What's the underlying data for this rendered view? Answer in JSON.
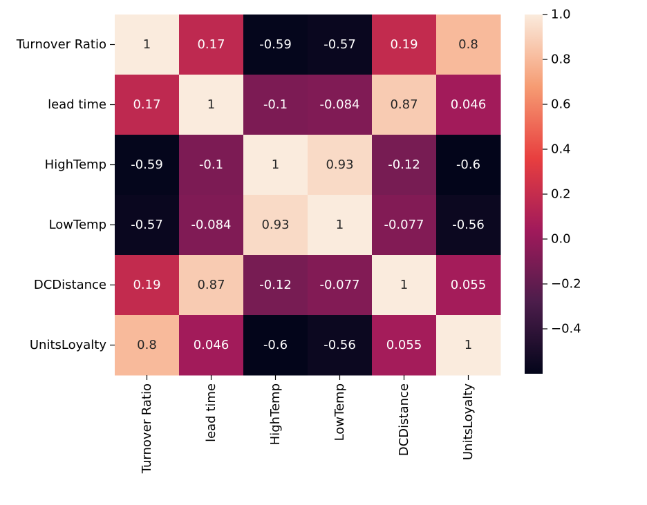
{
  "chart_data": {
    "type": "heatmap",
    "title": "",
    "xlabel": "",
    "ylabel": "",
    "row_labels": [
      "Turnover Ratio",
      "lead time",
      "HighTemp",
      "LowTemp",
      "DCDistance",
      "UnitsLoyalty"
    ],
    "col_labels": [
      "Turnover Ratio",
      "lead time",
      "HighTemp",
      "LowTemp",
      "DCDistance",
      "UnitsLoyalty"
    ],
    "values": [
      [
        1,
        0.17,
        -0.59,
        -0.57,
        0.19,
        0.8
      ],
      [
        0.17,
        1,
        -0.1,
        -0.084,
        0.87,
        0.046
      ],
      [
        -0.59,
        -0.1,
        1,
        0.93,
        -0.12,
        -0.6
      ],
      [
        -0.57,
        -0.084,
        0.93,
        1,
        -0.077,
        -0.56
      ],
      [
        0.19,
        0.87,
        -0.12,
        -0.077,
        1,
        0.055
      ],
      [
        0.8,
        0.046,
        -0.6,
        -0.56,
        0.055,
        1
      ]
    ],
    "annotations": [
      [
        "1",
        "0.17",
        "-0.59",
        "-0.57",
        "0.19",
        "0.8"
      ],
      [
        "0.17",
        "1",
        "-0.1",
        "-0.084",
        "0.87",
        "0.046"
      ],
      [
        "-0.59",
        "-0.1",
        "1",
        "0.93",
        "-0.12",
        "-0.6"
      ],
      [
        "-0.57",
        "-0.084",
        "0.93",
        "1",
        "-0.077",
        "-0.56"
      ],
      [
        "0.19",
        "0.87",
        "-0.12",
        "-0.077",
        "1",
        "0.055"
      ],
      [
        "0.8",
        "0.046",
        "-0.6",
        "-0.56",
        "0.055",
        "1"
      ]
    ],
    "colorbar": {
      "range": [
        -0.6,
        1.0
      ],
      "ticks": [
        1.0,
        0.8,
        0.6,
        0.4,
        0.2,
        0.0,
        -0.2,
        -0.4
      ],
      "tick_labels": [
        "1.0",
        "0.8",
        "0.6",
        "0.4",
        "0.2",
        "0.0",
        "−0.2",
        "−0.4"
      ]
    },
    "colormap": "rocket",
    "colormap_stops": [
      "#03051a",
      "#4c1d4b",
      "#a11a5b",
      "#e83f3f",
      "#f69c73",
      "#faebdd"
    ]
  }
}
